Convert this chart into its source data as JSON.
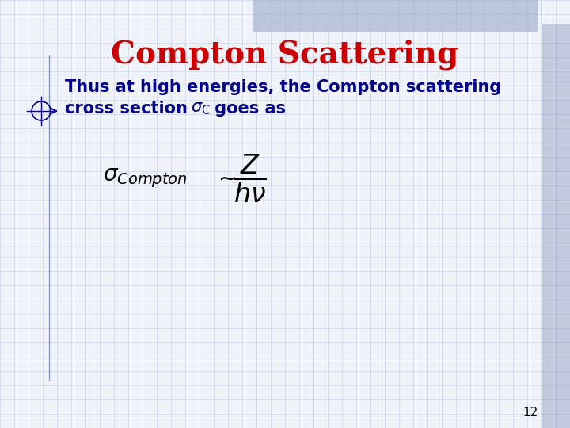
{
  "title": "Compton Scattering",
  "title_color": "#cc0000",
  "title_fontsize": 28,
  "bg_color": "#f0f3fa",
  "grid_color": "#c5cde0",
  "text_color": "#00008B",
  "bullet_line1": "Thus at high energies, the Compton scattering",
  "bullet_line2a": "cross section ",
  "bullet_line2b": " goes as",
  "page_number": "12",
  "top_bar_color": "#9aaac8",
  "right_bar_color": "#7080a8",
  "left_line_color": "#7080a8",
  "formula_color": "#000000",
  "text_fontsize": 15,
  "formula_fontsize": 20
}
